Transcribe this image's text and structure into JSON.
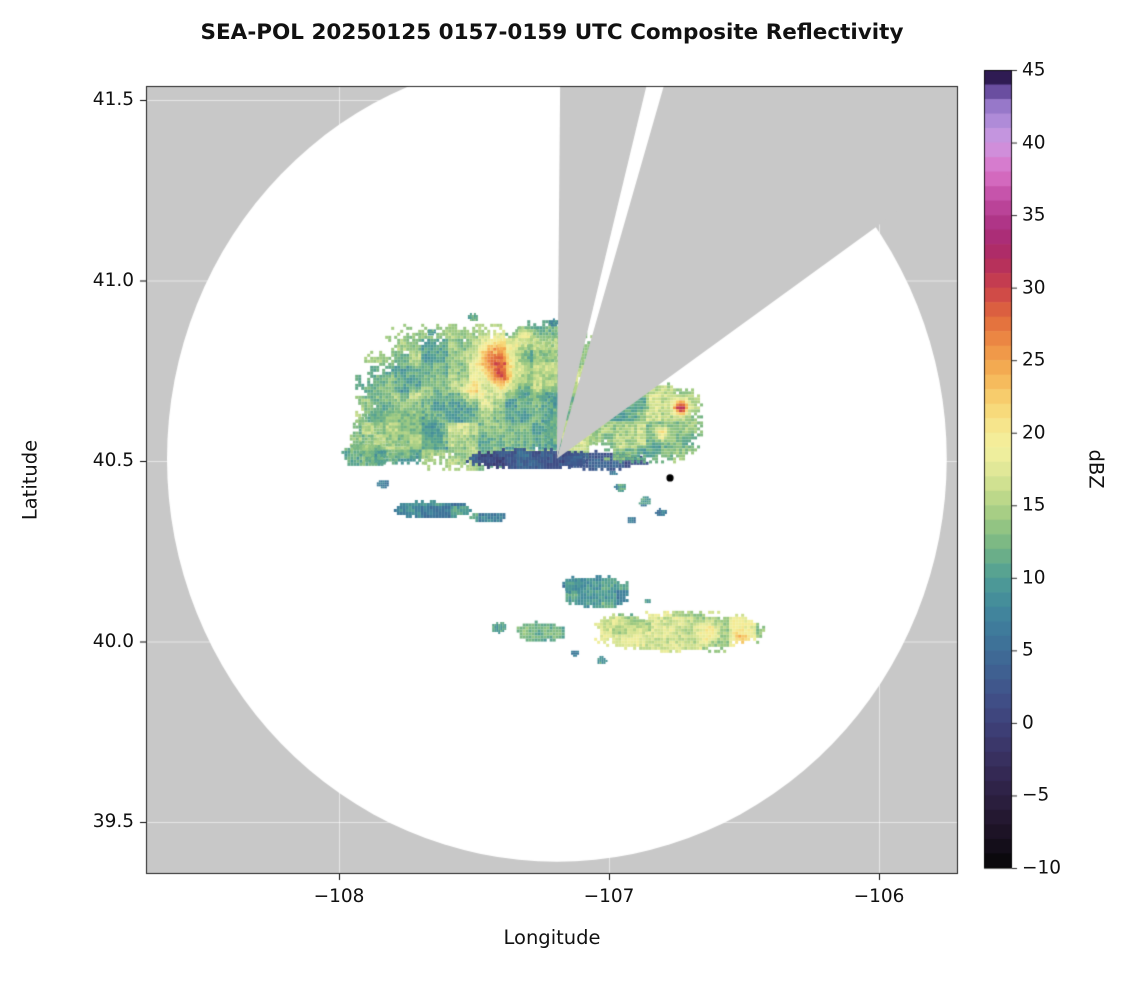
{
  "title": "SEA-POL 20250125 0157-0159 UTC Composite Reflectivity",
  "axes": {
    "xlabel": "Longitude",
    "ylabel": "Latitude",
    "x_ticks": [
      "−108",
      "−107",
      "−106"
    ],
    "y_ticks": [
      "41.5",
      "41.0",
      "40.5",
      "40.0",
      "39.5"
    ]
  },
  "colorbar": {
    "label": "dBZ",
    "tick_labels": [
      "45",
      "40",
      "35",
      "30",
      "25",
      "20",
      "15",
      "10",
      "5",
      "0",
      "−5",
      "−10"
    ],
    "min": -10,
    "max": 45
  },
  "chart_data": {
    "type": "heatmap",
    "title": "SEA-POL 20250125 0157-0159 UTC Composite Reflectivity",
    "xlabel": "Longitude",
    "ylabel": "Latitude",
    "xlim": [
      -108.72,
      -105.7
    ],
    "ylim": [
      39.34,
      41.54
    ],
    "x_tick_values": [
      -108,
      -107,
      -106
    ],
    "y_tick_values": [
      41.5,
      41.0,
      40.5,
      40.0,
      39.5
    ],
    "grid": true,
    "value_units": "dBZ",
    "value_range": [
      -10,
      45
    ],
    "colorbar_tick_values": [
      45,
      40,
      35,
      30,
      25,
      20,
      15,
      10,
      5,
      0,
      -5,
      -10
    ],
    "background_color": "#c8c8c8",
    "scan_area_color": "#ffffff",
    "grid_color": "rgba(255,255,255,0.55)",
    "colormap_stops": [
      [
        -10,
        "#060606"
      ],
      [
        -8,
        "#191020"
      ],
      [
        -6,
        "#271b37"
      ],
      [
        -4,
        "#32264e"
      ],
      [
        -2,
        "#3a3365"
      ],
      [
        0,
        "#3e427a"
      ],
      [
        2,
        "#40528a"
      ],
      [
        4,
        "#3f6493"
      ],
      [
        6,
        "#3e769a"
      ],
      [
        8,
        "#42899c"
      ],
      [
        10,
        "#4f9d95"
      ],
      [
        12,
        "#73b485"
      ],
      [
        14,
        "#9cc982"
      ],
      [
        16,
        "#c7dd8d"
      ],
      [
        18,
        "#eaec9b"
      ],
      [
        19,
        "#f2ef9e"
      ],
      [
        20,
        "#f5eb94"
      ],
      [
        22,
        "#f7d473"
      ],
      [
        24,
        "#f5b355"
      ],
      [
        26,
        "#ee9045"
      ],
      [
        28,
        "#e0693c"
      ],
      [
        30,
        "#ca414a"
      ],
      [
        32,
        "#b02b61"
      ],
      [
        34,
        "#a92e7e"
      ],
      [
        36,
        "#c04aa1"
      ],
      [
        38,
        "#d973c8"
      ],
      [
        40,
        "#cd97e0"
      ],
      [
        41,
        "#bb93de"
      ],
      [
        42,
        "#a383d2"
      ],
      [
        43,
        "#8a6cc0"
      ],
      [
        44,
        "#4a2f80"
      ],
      [
        45,
        "#140626"
      ]
    ],
    "radar": {
      "center_lon": -107.193,
      "center_lat": 40.506,
      "range_lon_deg": 1.444,
      "range_lat_deg": 1.116
    },
    "missing_sectors_azimuth_deg": [
      {
        "start": 0.5,
        "end": 13.5
      },
      {
        "start": 16.0,
        "end": 54.0
      }
    ],
    "station_marker": {
      "lon": -106.774,
      "lat": 40.453,
      "color": "#000000"
    },
    "echo_regions": [
      {
        "name": "main-storm-core",
        "lon": -107.51,
        "lat": 40.68,
        "rlon": 0.43,
        "rlat": 0.2,
        "dbz": 13
      },
      {
        "name": "main-storm-upper",
        "lon": -107.24,
        "lat": 40.78,
        "rlon": 0.185,
        "rlat": 0.11,
        "dbz": 14
      },
      {
        "name": "main-storm-sw-lobe",
        "lon": -107.79,
        "lat": 40.57,
        "rlon": 0.17,
        "rlat": 0.078,
        "dbz": 12
      },
      {
        "name": "west-fragment",
        "lon": -107.91,
        "lat": 40.52,
        "rlon": 0.081,
        "rlat": 0.033,
        "dbz": 11
      },
      {
        "name": "main-storm-east-edge",
        "lon": -107.145,
        "lat": 40.61,
        "rlon": 0.095,
        "rlat": 0.11,
        "dbz": 13
      },
      {
        "name": "low-dbz-band-west",
        "lon": -107.31,
        "lat": 40.508,
        "rlon": 0.22,
        "rlat": 0.028,
        "dbz": 2,
        "amp": 4
      },
      {
        "name": "low-dbz-band-east",
        "lon": -107.02,
        "lat": 40.506,
        "rlon": 0.156,
        "rlat": 0.025,
        "dbz": 3,
        "amp": 4
      },
      {
        "name": "east-cell",
        "lon": -106.87,
        "lat": 40.61,
        "rlon": 0.215,
        "rlat": 0.116,
        "dbz": 13
      },
      {
        "name": "thin-band-west",
        "lon": -107.66,
        "lat": 40.37,
        "rlon": 0.148,
        "rlat": 0.022,
        "dbz": 8
      },
      {
        "name": "thin-band-west-2",
        "lon": -107.45,
        "lat": 40.35,
        "rlon": 0.067,
        "rlat": 0.014,
        "dbz": 8
      },
      {
        "name": "mid-cell",
        "lon": -107.05,
        "lat": 40.14,
        "rlon": 0.122,
        "rlat": 0.044,
        "dbz": 10
      },
      {
        "name": "mid-cell-west",
        "lon": -107.14,
        "lat": 40.16,
        "rlon": 0.044,
        "rlat": 0.022,
        "dbz": 9
      },
      {
        "name": "south-band",
        "lon": -106.74,
        "lat": 40.03,
        "rlon": 0.315,
        "rlat": 0.055,
        "dbz": 16
      },
      {
        "name": "south-band-west",
        "lon": -106.94,
        "lat": 40.05,
        "rlon": 0.093,
        "rlat": 0.028,
        "dbz": 14
      },
      {
        "name": "south-small-west",
        "lon": -107.26,
        "lat": 40.03,
        "rlon": 0.093,
        "rlat": 0.028,
        "dbz": 11
      },
      {
        "name": "south-speck",
        "lon": -107.41,
        "lat": 40.04,
        "rlon": 0.03,
        "rlat": 0.014,
        "dbz": 9
      },
      {
        "name": "speck",
        "lon": -106.96,
        "lat": 40.43,
        "rlon": 0.022,
        "rlat": 0.012,
        "dbz": 8
      },
      {
        "name": "speck",
        "lon": -106.87,
        "lat": 40.39,
        "rlon": 0.02,
        "rlat": 0.012,
        "dbz": 8
      },
      {
        "name": "speck",
        "lon": -106.81,
        "lat": 40.36,
        "rlon": 0.02,
        "rlat": 0.01,
        "dbz": 8
      },
      {
        "name": "speck",
        "lon": -106.92,
        "lat": 40.34,
        "rlon": 0.018,
        "rlat": 0.01,
        "dbz": 8
      },
      {
        "name": "speck",
        "lon": -106.99,
        "lat": 40.47,
        "rlon": 0.015,
        "rlat": 0.008,
        "dbz": 7
      },
      {
        "name": "speck",
        "lon": -106.86,
        "lat": 40.115,
        "rlon": 0.015,
        "rlat": 0.008,
        "dbz": 8
      },
      {
        "name": "speck",
        "lon": -107.03,
        "lat": 39.95,
        "rlon": 0.02,
        "rlat": 0.01,
        "dbz": 9
      },
      {
        "name": "speck",
        "lon": -107.13,
        "lat": 39.97,
        "rlon": 0.018,
        "rlat": 0.01,
        "dbz": 9
      },
      {
        "name": "speck",
        "lon": -107.51,
        "lat": 40.9,
        "rlon": 0.02,
        "rlat": 0.01,
        "dbz": 10
      },
      {
        "name": "speck",
        "lon": -107.66,
        "lat": 40.86,
        "rlon": 0.018,
        "rlat": 0.01,
        "dbz": 10
      },
      {
        "name": "speck",
        "lon": -107.21,
        "lat": 40.885,
        "rlon": 0.02,
        "rlat": 0.01,
        "dbz": 10
      },
      {
        "name": "speck",
        "lon": -107.84,
        "lat": 40.44,
        "rlon": 0.02,
        "rlat": 0.012,
        "dbz": 9
      }
    ],
    "hotspots": [
      {
        "name": "orange-red-core",
        "lon": -107.42,
        "lat": 40.78,
        "sigma_deg": 0.039,
        "boost_dbz": 15
      },
      {
        "name": "orange-patch",
        "lon": -107.4,
        "lat": 40.73,
        "sigma_deg": 0.019,
        "boost_dbz": 9
      },
      {
        "name": "orange-patch-2",
        "lon": -107.51,
        "lat": 40.69,
        "sigma_deg": 0.022,
        "boost_dbz": 8
      },
      {
        "name": "orange-speck-top",
        "lon": -107.32,
        "lat": 40.84,
        "sigma_deg": 0.019,
        "boost_dbz": 7
      },
      {
        "name": "red-speck-east",
        "lon": -106.74,
        "lat": 40.65,
        "sigma_deg": 0.014,
        "boost_dbz": 16
      },
      {
        "name": "orange-speck-east",
        "lon": -106.81,
        "lat": 40.58,
        "sigma_deg": 0.014,
        "boost_dbz": 8
      },
      {
        "name": "orange-speck-south",
        "lon": -106.64,
        "lat": 40.03,
        "sigma_deg": 0.019,
        "boost_dbz": 6
      },
      {
        "name": "orange-speck-south-2",
        "lon": -106.51,
        "lat": 40.005,
        "sigma_deg": 0.017,
        "boost_dbz": 6
      }
    ]
  }
}
